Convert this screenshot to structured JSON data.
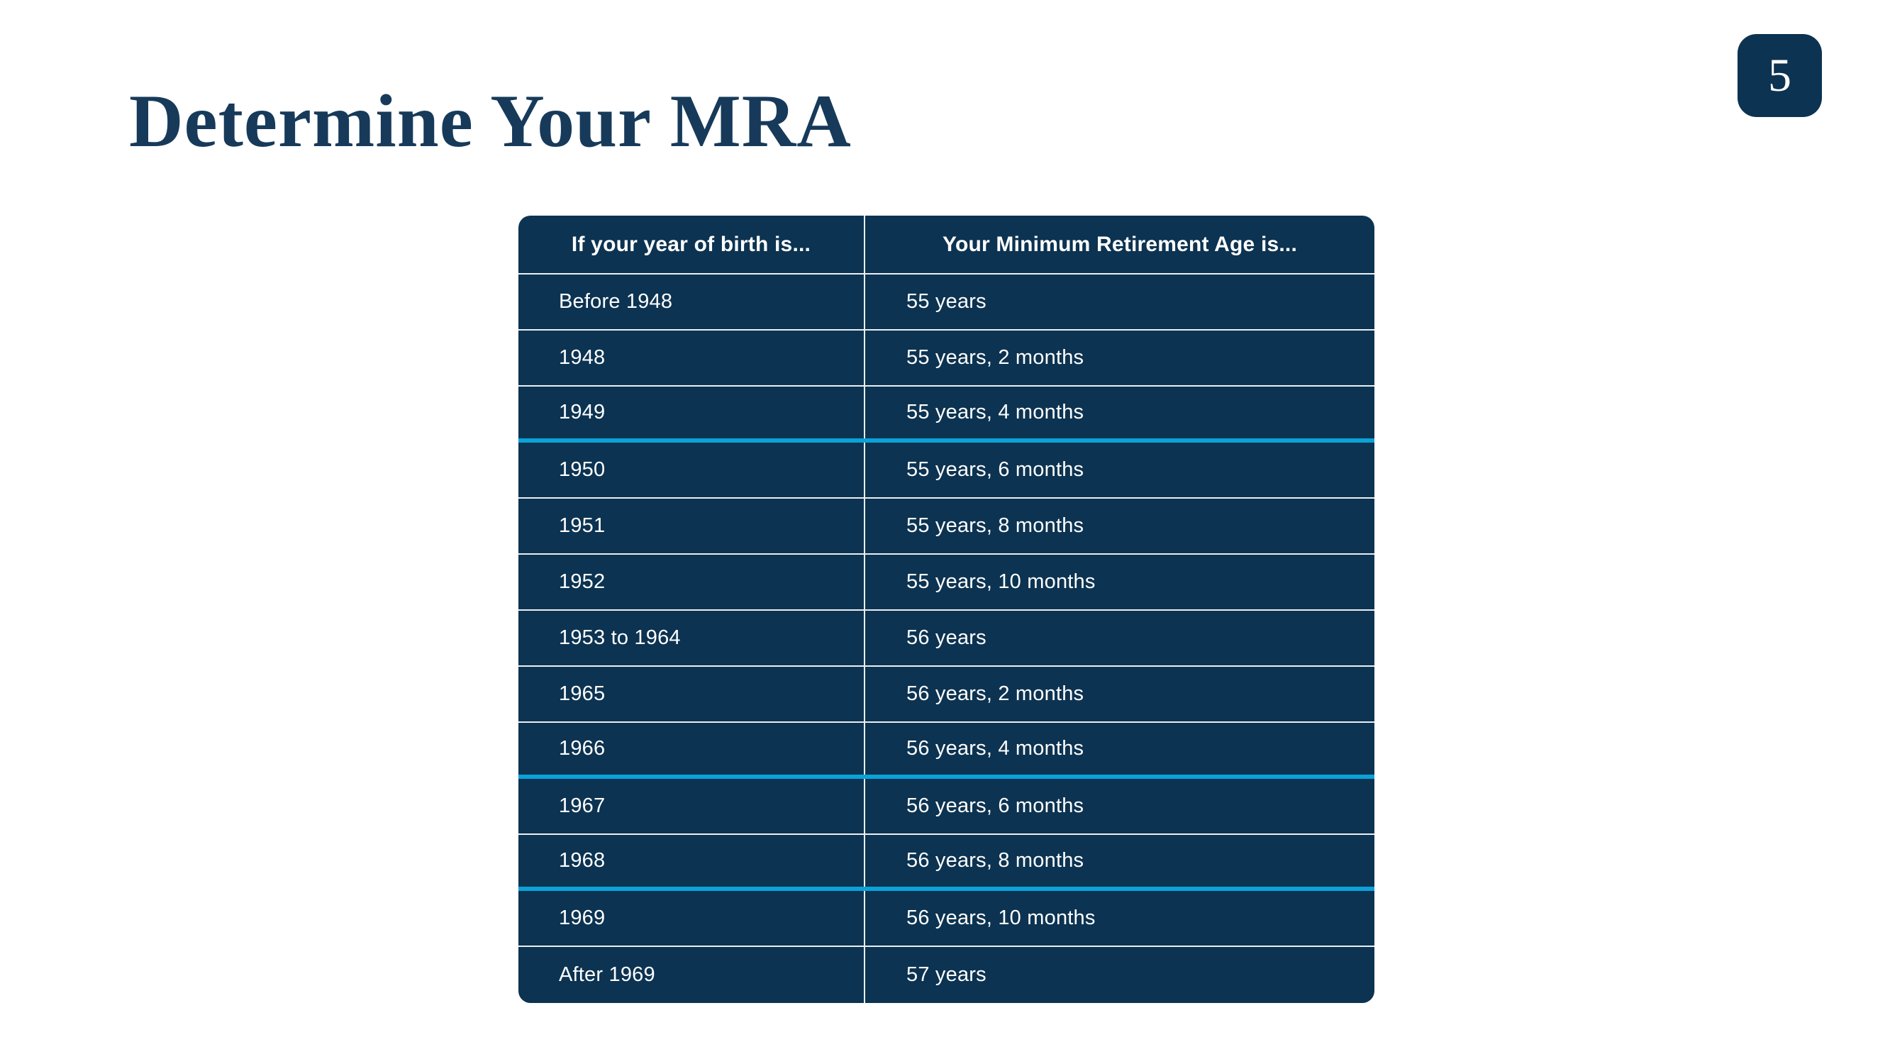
{
  "title": "Determine Your MRA",
  "page": {
    "number": "5"
  },
  "colors": {
    "table_navy": "#0c3351",
    "accent_cyan": "#0aa2d8",
    "title_navy": "#173a5a"
  },
  "table": {
    "headers": [
      "If your year of birth is...",
      "Your Minimum Retirement Age is..."
    ],
    "rows": [
      {
        "birth_year": "Before 1948",
        "mra": "55 years",
        "accent_below": false
      },
      {
        "birth_year": "1948",
        "mra": "55 years, 2 months",
        "accent_below": false
      },
      {
        "birth_year": "1949",
        "mra": "55 years, 4 months",
        "accent_below": true
      },
      {
        "birth_year": "1950",
        "mra": "55 years, 6 months",
        "accent_below": false
      },
      {
        "birth_year": "1951",
        "mra": "55 years, 8 months",
        "accent_below": false
      },
      {
        "birth_year": "1952",
        "mra": "55 years, 10 months",
        "accent_below": false
      },
      {
        "birth_year": "1953 to 1964",
        "mra": "56 years",
        "accent_below": false
      },
      {
        "birth_year": "1965",
        "mra": "56 years, 2 months",
        "accent_below": false
      },
      {
        "birth_year": "1966",
        "mra": "56 years, 4 months",
        "accent_below": true
      },
      {
        "birth_year": "1967",
        "mra": "56 years, 6 months",
        "accent_below": false
      },
      {
        "birth_year": "1968",
        "mra": "56 years, 8 months",
        "accent_below": true
      },
      {
        "birth_year": "1969",
        "mra": "56 years, 10 months",
        "accent_below": false
      },
      {
        "birth_year": "After 1969",
        "mra": "57 years",
        "accent_below": false
      }
    ]
  }
}
